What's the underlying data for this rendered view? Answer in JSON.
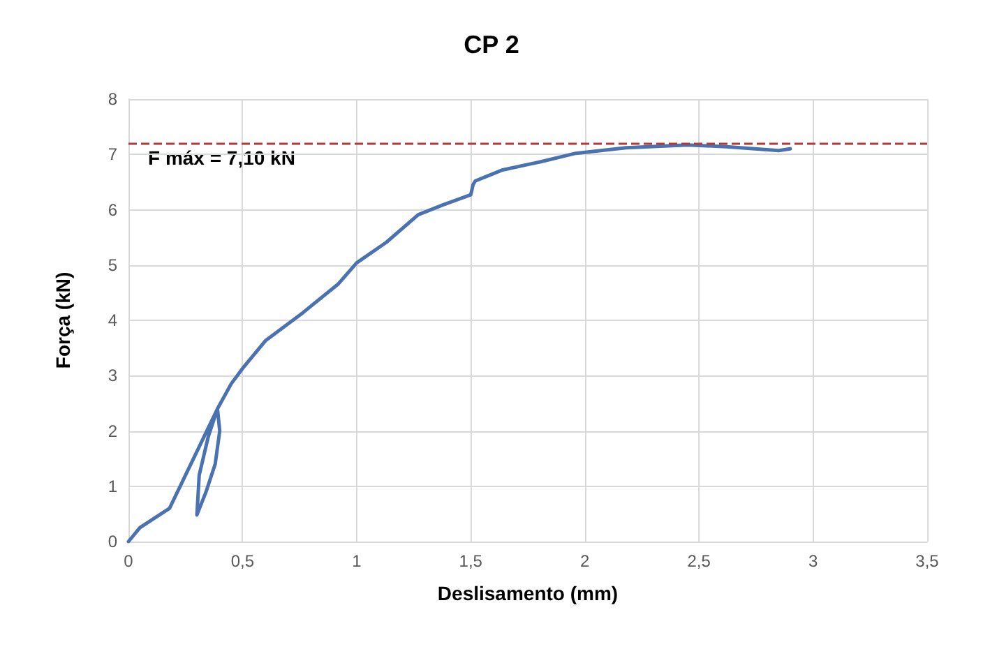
{
  "chart_data": {
    "type": "line",
    "title": "CP 2",
    "xlabel": "Deslisamento (mm)",
    "ylabel": "Força (kN)",
    "xlim": [
      0,
      3.5
    ],
    "xticks": [
      {
        "value": 0,
        "label": "0"
      },
      {
        "value": 0.5,
        "label": "0,5"
      },
      {
        "value": 1,
        "label": "1"
      },
      {
        "value": 1.5,
        "label": "1,5"
      },
      {
        "value": 2,
        "label": "2"
      },
      {
        "value": 2.5,
        "label": "2,5"
      },
      {
        "value": 3,
        "label": "3"
      },
      {
        "value": 3.5,
        "label": "3,5"
      }
    ],
    "ylim": [
      0,
      8
    ],
    "yticks": [
      0,
      1,
      2,
      3,
      4,
      5,
      6,
      7,
      8
    ],
    "grid": true,
    "marker": "none",
    "line_style": "solid",
    "series": [
      {
        "color": "#4a72b0",
        "x": [
          0,
          0.05,
          0.18,
          0.25,
          0.32,
          0.39,
          0.4,
          0.38,
          0.34,
          0.3,
          0.31,
          0.35,
          0.39,
          0.45,
          0.5,
          0.6,
          0.765,
          0.92,
          1.0,
          1.13,
          1.27,
          1.38,
          1.5,
          1.51,
          1.52,
          1.64,
          1.81,
          1.96,
          2.18,
          2.45,
          2.62,
          2.85,
          2.9
        ],
        "values": [
          0,
          0.25,
          0.6,
          1.2,
          1.8,
          2.4,
          2.0,
          1.4,
          0.9,
          0.48,
          1.2,
          1.9,
          2.4,
          2.85,
          3.13,
          3.63,
          4.14,
          4.66,
          5.04,
          5.41,
          5.91,
          6.09,
          6.27,
          6.45,
          6.52,
          6.72,
          6.87,
          7.02,
          7.12,
          7.17,
          7.14,
          7.07,
          7.1
        ]
      }
    ],
    "ref_lines": [
      {
        "axis": "y",
        "value": 7.2,
        "color": "#b03a3a",
        "line_style": "dashed"
      }
    ],
    "annotations": [
      "F máx = 7,10 kN"
    ]
  }
}
